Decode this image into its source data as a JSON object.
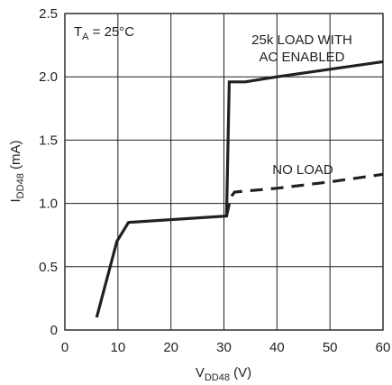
{
  "chart_data": {
    "type": "line",
    "xlabel_main": "V",
    "xlabel_sub": "DD48",
    "xlabel_unit": " (V)",
    "ylabel_main": "I",
    "ylabel_sub": "DD48",
    "ylabel_unit": " (mA)",
    "xlim": [
      0,
      60
    ],
    "ylim": [
      0,
      2.5
    ],
    "xticks": [
      "0",
      "10",
      "20",
      "30",
      "40",
      "50",
      "60"
    ],
    "yticks": [
      "0",
      "0.5",
      "1.0",
      "1.5",
      "2.0",
      "2.5"
    ],
    "grid": true,
    "annotation_temp_main": "T",
    "annotation_temp_sub": "A",
    "annotation_temp_value": " = 25°C",
    "series": [
      {
        "label_lines": [
          "25k LOAD WITH",
          "AC ENABLED"
        ],
        "style": "solid",
        "points": [
          [
            6,
            0.1
          ],
          [
            9.8,
            0.7
          ],
          [
            12,
            0.85
          ],
          [
            30.5,
            0.9
          ],
          [
            31,
            1.96
          ],
          [
            34,
            1.96
          ],
          [
            40,
            2.0
          ],
          [
            50,
            2.06
          ],
          [
            60,
            2.12
          ]
        ]
      },
      {
        "label_lines": [
          "NO LOAD"
        ],
        "style": "dashed",
        "points": [
          [
            30.5,
            0.9
          ],
          [
            31.3,
            1.05
          ],
          [
            32,
            1.09
          ],
          [
            40,
            1.12
          ],
          [
            50,
            1.17
          ],
          [
            60,
            1.23
          ]
        ]
      }
    ]
  }
}
